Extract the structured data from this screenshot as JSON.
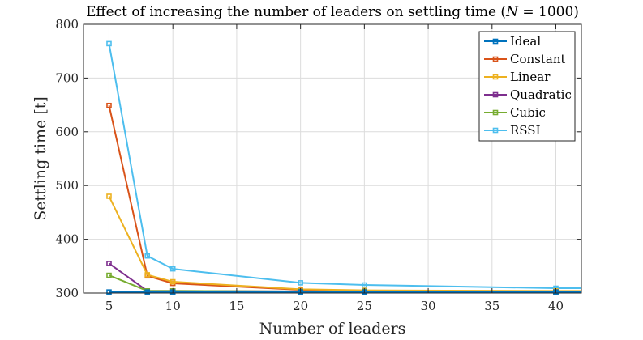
{
  "chart_data": {
    "type": "line",
    "title": "Effect of increasing the number of leaders on settling time (N = 1000)",
    "title_parts": [
      "Effect of increasing the number of leaders on settling time (",
      "N",
      " = 1000)"
    ],
    "xlabel": "Number of leaders",
    "ylabel": "Settling time [t]",
    "xlim": [
      3,
      42
    ],
    "ylim": [
      300,
      800
    ],
    "xticks": [
      5,
      10,
      15,
      20,
      25,
      30,
      35,
      40
    ],
    "yticks": [
      300,
      400,
      500,
      600,
      700,
      800
    ],
    "grid": true,
    "legend_position": "top-right",
    "x": [
      5,
      8,
      10,
      20,
      25,
      40,
      42
    ],
    "series": [
      {
        "name": "Ideal",
        "color": "#0072BD",
        "x": [
          5,
          8,
          10,
          20,
          25,
          40
        ],
        "values": [
          302,
          302,
          302,
          302,
          302,
          302
        ],
        "extend_to": 42
      },
      {
        "name": "Constant",
        "color": "#D95319",
        "x": [
          5,
          8,
          10,
          20,
          25,
          40
        ],
        "values": [
          649,
          332,
          318,
          306,
          304,
          303
        ],
        "extend_to": 42
      },
      {
        "name": "Linear",
        "color": "#EDB120",
        "x": [
          5,
          8,
          10,
          20,
          25,
          40
        ],
        "values": [
          480,
          334,
          321,
          307,
          305,
          304
        ],
        "extend_to": 42
      },
      {
        "name": "Quadratic",
        "color": "#7E2F8E",
        "x": [
          5,
          8,
          10,
          20,
          25,
          40
        ],
        "values": [
          355,
          304,
          304,
          303,
          303,
          302
        ],
        "extend_to": 42
      },
      {
        "name": "Cubic",
        "color": "#77AC30",
        "x": [
          5,
          8,
          10,
          20,
          25,
          40
        ],
        "values": [
          333,
          304,
          304,
          303,
          303,
          302
        ],
        "extend_to": 42
      },
      {
        "name": "RSSI",
        "color": "#4DBEEE",
        "x": [
          5,
          8,
          10,
          20,
          25,
          40
        ],
        "values": [
          764,
          369,
          345,
          319,
          315,
          309
        ],
        "extend_to": 42
      }
    ]
  }
}
